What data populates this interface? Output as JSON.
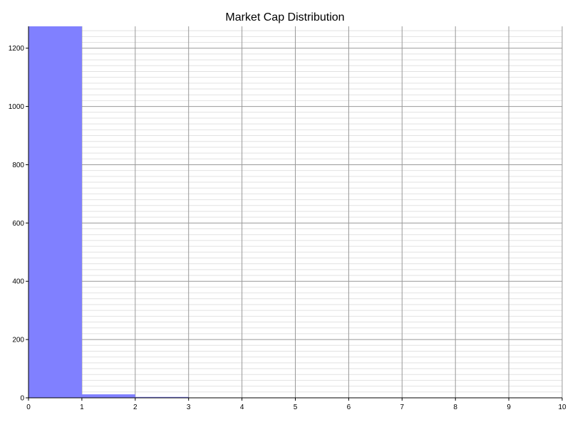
{
  "chart_data": {
    "type": "bar",
    "title": "Market Cap Distribution",
    "xlabel": "",
    "ylabel": "",
    "bin_edges": [
      0,
      1,
      2,
      3,
      4,
      5,
      6,
      7,
      8,
      9,
      10
    ],
    "values": [
      1275,
      12,
      3,
      0,
      0,
      0,
      0,
      0,
      0,
      0
    ],
    "xlim": [
      0,
      10
    ],
    "ylim": [
      0,
      1275
    ],
    "x_ticks": [
      0,
      1,
      2,
      3,
      4,
      5,
      6,
      7,
      8,
      9,
      10
    ],
    "y_ticks": [
      0,
      200,
      400,
      600,
      800,
      1000,
      1200
    ],
    "grid": true,
    "bar_color": "#8080ff"
  }
}
